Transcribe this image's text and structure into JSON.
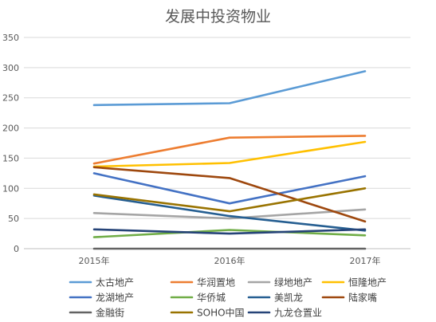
{
  "chart_data": {
    "type": "line",
    "title": "发展中投资物业",
    "xlabel": "",
    "ylabel": "",
    "categories": [
      "2015年",
      "2016年",
      "2017年"
    ],
    "ylim": [
      0,
      350
    ],
    "yticks": [
      0,
      50,
      100,
      150,
      200,
      250,
      300,
      350
    ],
    "grid": true,
    "legend_position": "bottom",
    "series": [
      {
        "name": "太古地产",
        "color": "#5B9BD5",
        "values": [
          238,
          241,
          294
        ]
      },
      {
        "name": "华润置地",
        "color": "#ED7D31",
        "values": [
          141,
          184,
          187
        ]
      },
      {
        "name": "绿地地产",
        "color": "#A5A5A5",
        "values": [
          59,
          50,
          65
        ]
      },
      {
        "name": "恒隆地产",
        "color": "#FFC000",
        "values": [
          136,
          142,
          177
        ]
      },
      {
        "name": "龙湖地产",
        "color": "#4472C4",
        "values": [
          125,
          75,
          120
        ]
      },
      {
        "name": "华侨城",
        "color": "#70AD47",
        "values": [
          19,
          31,
          22
        ]
      },
      {
        "name": "美凯龙",
        "color": "#255E91",
        "values": [
          88,
          54,
          30
        ]
      },
      {
        "name": "陆家嘴",
        "color": "#9E480E",
        "values": [
          135,
          117,
          45
        ]
      },
      {
        "name": "金融街",
        "color": "#636363",
        "values": [
          0,
          0,
          0
        ]
      },
      {
        "name": "SOHO中国",
        "color": "#997300",
        "values": [
          90,
          62,
          100
        ]
      },
      {
        "name": "九龙仓置业",
        "color": "#264478",
        "values": [
          32,
          25,
          32
        ]
      }
    ]
  }
}
